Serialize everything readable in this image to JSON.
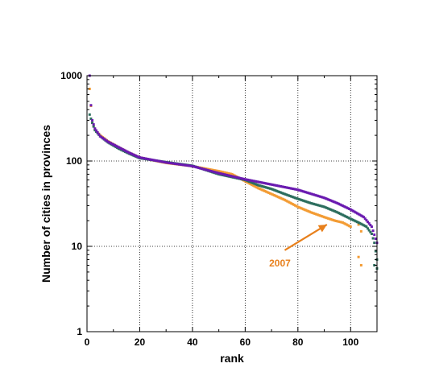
{
  "chart_data": {
    "type": "scatter",
    "title": "",
    "xlabel": "rank",
    "ylabel": "Number of cities in provinces",
    "xlim": [
      0,
      110
    ],
    "ylim": [
      1,
      1000
    ],
    "y_scale": "log",
    "grid": true,
    "grid_style": "dotted",
    "x_ticks": [
      0,
      20,
      40,
      60,
      80,
      100
    ],
    "y_ticks": [
      1,
      10,
      100,
      1000
    ],
    "x_tick_labels": [
      "0",
      "20",
      "40",
      "60",
      "80",
      "100"
    ],
    "y_tick_labels": [
      "1",
      "10",
      "100",
      "1000"
    ],
    "series": [
      {
        "color": "#f39c34",
        "marker": "square",
        "anchors": [
          [
            1,
            700
          ],
          [
            2,
            280
          ],
          [
            3,
            235
          ],
          [
            5,
            200
          ],
          [
            8,
            170
          ],
          [
            12,
            145
          ],
          [
            16,
            125
          ],
          [
            20,
            110
          ],
          [
            25,
            102
          ],
          [
            30,
            95
          ],
          [
            40,
            87
          ],
          [
            50,
            76
          ],
          [
            55,
            70
          ],
          [
            60,
            58
          ],
          [
            65,
            48
          ],
          [
            70,
            41
          ],
          [
            75,
            35
          ],
          [
            80,
            29
          ],
          [
            85,
            25
          ],
          [
            90,
            22
          ],
          [
            94,
            20
          ],
          [
            97,
            19
          ],
          [
            100,
            17
          ]
        ],
        "extra_points": [
          [
            103,
            18
          ],
          [
            104,
            15
          ],
          [
            103,
            7.5
          ],
          [
            104,
            6
          ]
        ]
      },
      {
        "color": "#2d6e5e",
        "marker": "square",
        "anchors": [
          [
            1,
            350
          ],
          [
            2,
            280
          ],
          [
            3,
            230
          ],
          [
            5,
            195
          ],
          [
            8,
            165
          ],
          [
            12,
            140
          ],
          [
            16,
            122
          ],
          [
            20,
            108
          ],
          [
            30,
            97
          ],
          [
            40,
            88
          ],
          [
            50,
            70
          ],
          [
            60,
            60
          ],
          [
            65,
            52
          ],
          [
            70,
            47
          ],
          [
            75,
            41
          ],
          [
            80,
            36
          ],
          [
            85,
            32
          ],
          [
            90,
            29
          ],
          [
            95,
            25
          ],
          [
            100,
            21
          ],
          [
            103,
            19
          ],
          [
            106,
            17
          ],
          [
            108,
            14
          ],
          [
            109,
            11
          ],
          [
            110,
            7
          ]
        ],
        "extra_points": [
          [
            109,
            6
          ],
          [
            110,
            5.5
          ]
        ]
      },
      {
        "color": "#6a1bb0",
        "marker": "square",
        "anchors": [
          [
            1,
            1000
          ],
          [
            1.5,
            450
          ],
          [
            2,
            300
          ],
          [
            3,
            240
          ],
          [
            5,
            195
          ],
          [
            8,
            168
          ],
          [
            12,
            145
          ],
          [
            16,
            125
          ],
          [
            20,
            110
          ],
          [
            30,
            96
          ],
          [
            40,
            87
          ],
          [
            50,
            72
          ],
          [
            60,
            61
          ],
          [
            70,
            53
          ],
          [
            80,
            46
          ],
          [
            90,
            37
          ],
          [
            95,
            32
          ],
          [
            100,
            27
          ],
          [
            105,
            22
          ],
          [
            108,
            17
          ],
          [
            110,
            11
          ]
        ]
      }
    ],
    "annotations": [
      {
        "text": "2007",
        "color": "#e8801c",
        "arrow_from": [
          75,
          9
        ],
        "arrow_to": [
          91,
          18
        ]
      }
    ]
  }
}
